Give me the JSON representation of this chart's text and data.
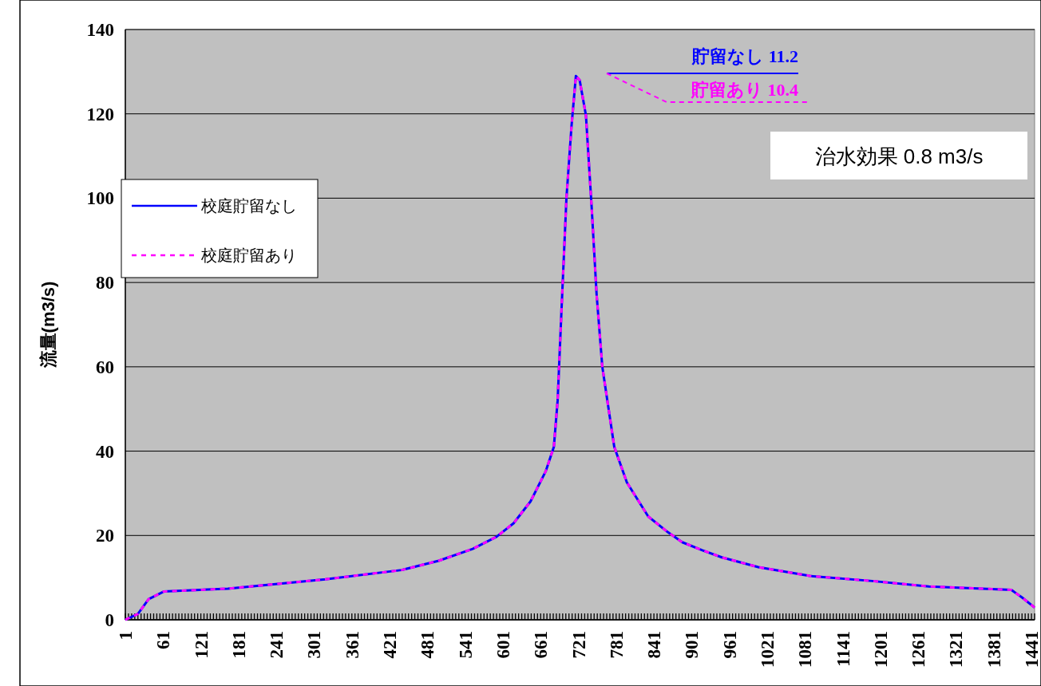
{
  "chart_data": {
    "type": "line",
    "ylabel": "流量(m3/s)",
    "xlim": [
      1,
      1446
    ],
    "xticks": [
      1,
      61,
      121,
      181,
      241,
      301,
      361,
      421,
      481,
      541,
      601,
      661,
      721,
      781,
      841,
      901,
      961,
      1021,
      1081,
      1141,
      1201,
      1261,
      1321,
      1381,
      1441
    ],
    "ylim": [
      0,
      140
    ],
    "yticks": [
      0,
      20,
      40,
      60,
      80,
      100,
      120,
      140
    ],
    "grid": "y",
    "legend": "left",
    "tick_labels": true,
    "series": [
      {
        "name": "校庭貯留なし",
        "color": "#0000ff",
        "line_style": "solid",
        "x": [
          1,
          21,
          38,
          62,
          164,
          319,
          440,
          499,
          553,
          591,
          618,
          645,
          669,
          682,
          688,
          694,
          702,
          710,
          717,
          723,
          733,
          742,
          750,
          759,
          778,
          798,
          832,
          863,
          886,
          918,
          949,
          1007,
          1089,
          1188,
          1278,
          1409,
          1426,
          1446
        ],
        "values": [
          0,
          1.4,
          4.9,
          6.7,
          7.4,
          9.6,
          11.8,
          14,
          16.8,
          19.7,
          22.9,
          28.1,
          35.2,
          41,
          52,
          73,
          100,
          117,
          129,
          128,
          119.6,
          98,
          77,
          60,
          41,
          32.6,
          24.5,
          20.8,
          18.4,
          16.5,
          14.8,
          12.5,
          10.4,
          9.2,
          7.9,
          7.1,
          5.3,
          2.9
        ]
      },
      {
        "name": "校庭貯留あり",
        "color": "#ff00ff",
        "line_style": "dashed",
        "x": [
          1,
          21,
          38,
          62,
          164,
          319,
          440,
          499,
          553,
          591,
          618,
          645,
          669,
          682,
          688,
          694,
          702,
          710,
          717,
          723,
          733,
          742,
          750,
          759,
          778,
          798,
          832,
          863,
          886,
          918,
          949,
          1007,
          1089,
          1188,
          1278,
          1409,
          1426,
          1446
        ],
        "values": [
          0,
          1.4,
          4.9,
          6.7,
          7.4,
          9.6,
          11.8,
          14,
          16.8,
          19.7,
          22.9,
          28.1,
          35.2,
          41,
          52,
          73,
          100,
          117,
          129,
          128,
          119.6,
          98,
          77,
          60,
          41,
          32.6,
          24.5,
          20.8,
          18.4,
          16.5,
          14.8,
          12.5,
          10.4,
          9.2,
          7.9,
          7.1,
          5.3,
          2.9
        ]
      }
    ],
    "annotations": [
      "貯留なし  11.2",
      "貯留あり  10.4",
      "治水効果  0.8 m3/s"
    ]
  }
}
